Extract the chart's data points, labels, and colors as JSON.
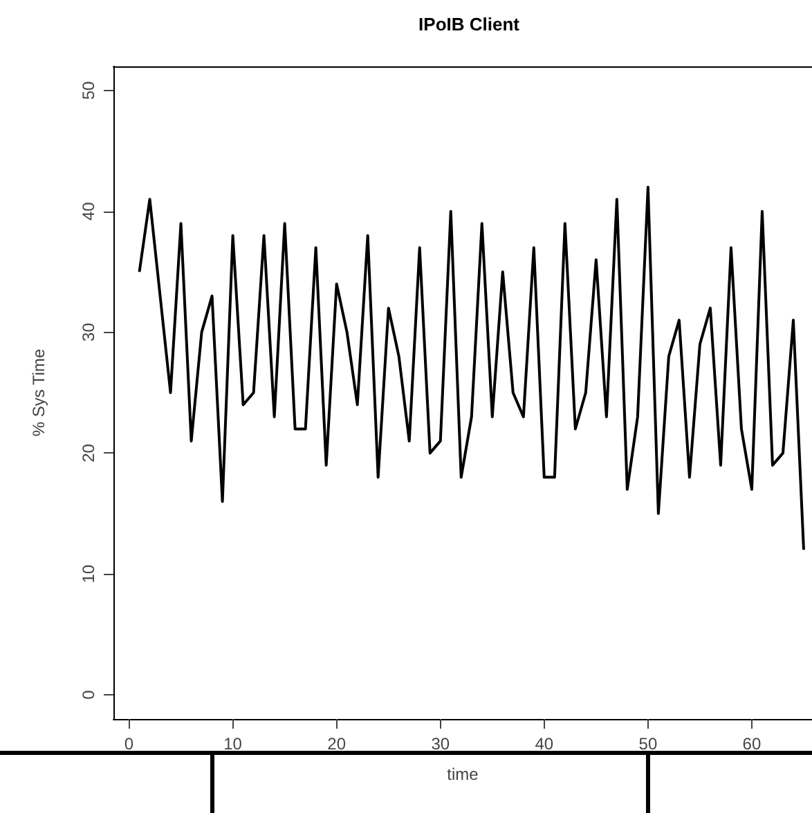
{
  "chart_data": {
    "type": "line",
    "title": "IPoIB Client",
    "xlabel": "time",
    "ylabel": "% Sys Time",
    "x": [
      1,
      2,
      3,
      4,
      5,
      6,
      7,
      8,
      9,
      10,
      11,
      12,
      13,
      14,
      15,
      16,
      17,
      18,
      19,
      20,
      21,
      22,
      23,
      24,
      25,
      26,
      27,
      28,
      29,
      30,
      31,
      32,
      33,
      34,
      35,
      36,
      37,
      38,
      39,
      40,
      41,
      42,
      43,
      44,
      45,
      46,
      47,
      48,
      49,
      50,
      51,
      52,
      53,
      54,
      55,
      56,
      57,
      58,
      59,
      60,
      61,
      62,
      63,
      64,
      65
    ],
    "series": [
      {
        "color": "#000000",
        "values": [
          35,
          41,
          33,
          25,
          39,
          21,
          30,
          33,
          16,
          38,
          24,
          25,
          38,
          23,
          39,
          22,
          22,
          37,
          19,
          34,
          30,
          24,
          38,
          18,
          32,
          28,
          21,
          37,
          20,
          21,
          40,
          18,
          23,
          39,
          23,
          35,
          25,
          23,
          37,
          18,
          18,
          39,
          22,
          25,
          36,
          23,
          41,
          17,
          23,
          42,
          15,
          28,
          31,
          18,
          29,
          32,
          19,
          37,
          22,
          17,
          40,
          19,
          20,
          31,
          12
        ]
      }
    ],
    "xlim": [
      -1.5,
      65.8
    ],
    "xticks": [
      0,
      10,
      20,
      30,
      40,
      50,
      60
    ],
    "ylim": [
      -2,
      52
    ],
    "yticks": [
      0,
      10,
      20,
      30,
      40,
      50
    ],
    "marker": "none",
    "grid": false
  }
}
